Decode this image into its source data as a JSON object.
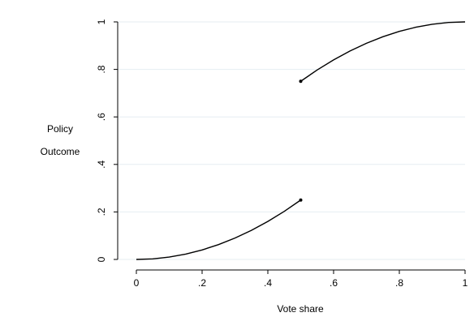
{
  "chart_data": {
    "type": "line",
    "title": "",
    "xlabel": "Vote share",
    "ylabel_lines": [
      "Policy",
      "Outcome"
    ],
    "xlim": [
      0,
      1
    ],
    "ylim": [
      0,
      1
    ],
    "x_ticks": [
      {
        "value": 0,
        "label": "0"
      },
      {
        "value": 0.2,
        "label": ".2"
      },
      {
        "value": 0.4,
        "label": ".4"
      },
      {
        "value": 0.6,
        "label": ".6"
      },
      {
        "value": 0.8,
        "label": ".8"
      },
      {
        "value": 1,
        "label": "1"
      }
    ],
    "y_ticks": [
      {
        "value": 0,
        "label": "0"
      },
      {
        "value": 0.2,
        "label": ".2"
      },
      {
        "value": 0.4,
        "label": ".4"
      },
      {
        "value": 0.6,
        "label": ".6"
      },
      {
        "value": 0.8,
        "label": ".8"
      },
      {
        "value": 1,
        "label": "1"
      }
    ],
    "grid": "horizontal",
    "line_color": "#000000",
    "grid_color": "#e6eef2",
    "series": [
      {
        "values": [
          {
            "x": 0,
            "y": 0
          },
          {
            "x": 0.05,
            "y": 0.0025
          },
          {
            "x": 0.1,
            "y": 0.01
          },
          {
            "x": 0.15,
            "y": 0.0225
          },
          {
            "x": 0.2,
            "y": 0.04
          },
          {
            "x": 0.25,
            "y": 0.0625
          },
          {
            "x": 0.3,
            "y": 0.09
          },
          {
            "x": 0.35,
            "y": 0.1225
          },
          {
            "x": 0.4,
            "y": 0.16
          },
          {
            "x": 0.45,
            "y": 0.2025
          },
          {
            "x": 0.5,
            "y": 0.25
          }
        ],
        "endpoint": {
          "x": 0.5,
          "y": 0.25
        }
      },
      {
        "values": [
          {
            "x": 0.5,
            "y": 0.75
          },
          {
            "x": 0.55,
            "y": 0.7975
          },
          {
            "x": 0.6,
            "y": 0.84
          },
          {
            "x": 0.65,
            "y": 0.8775
          },
          {
            "x": 0.7,
            "y": 0.91
          },
          {
            "x": 0.75,
            "y": 0.9375
          },
          {
            "x": 0.8,
            "y": 0.96
          },
          {
            "x": 0.85,
            "y": 0.9775
          },
          {
            "x": 0.9,
            "y": 0.99
          },
          {
            "x": 0.95,
            "y": 0.9975
          },
          {
            "x": 1,
            "y": 1
          }
        ],
        "endpoint": {
          "x": 0.5,
          "y": 0.75
        }
      }
    ]
  }
}
